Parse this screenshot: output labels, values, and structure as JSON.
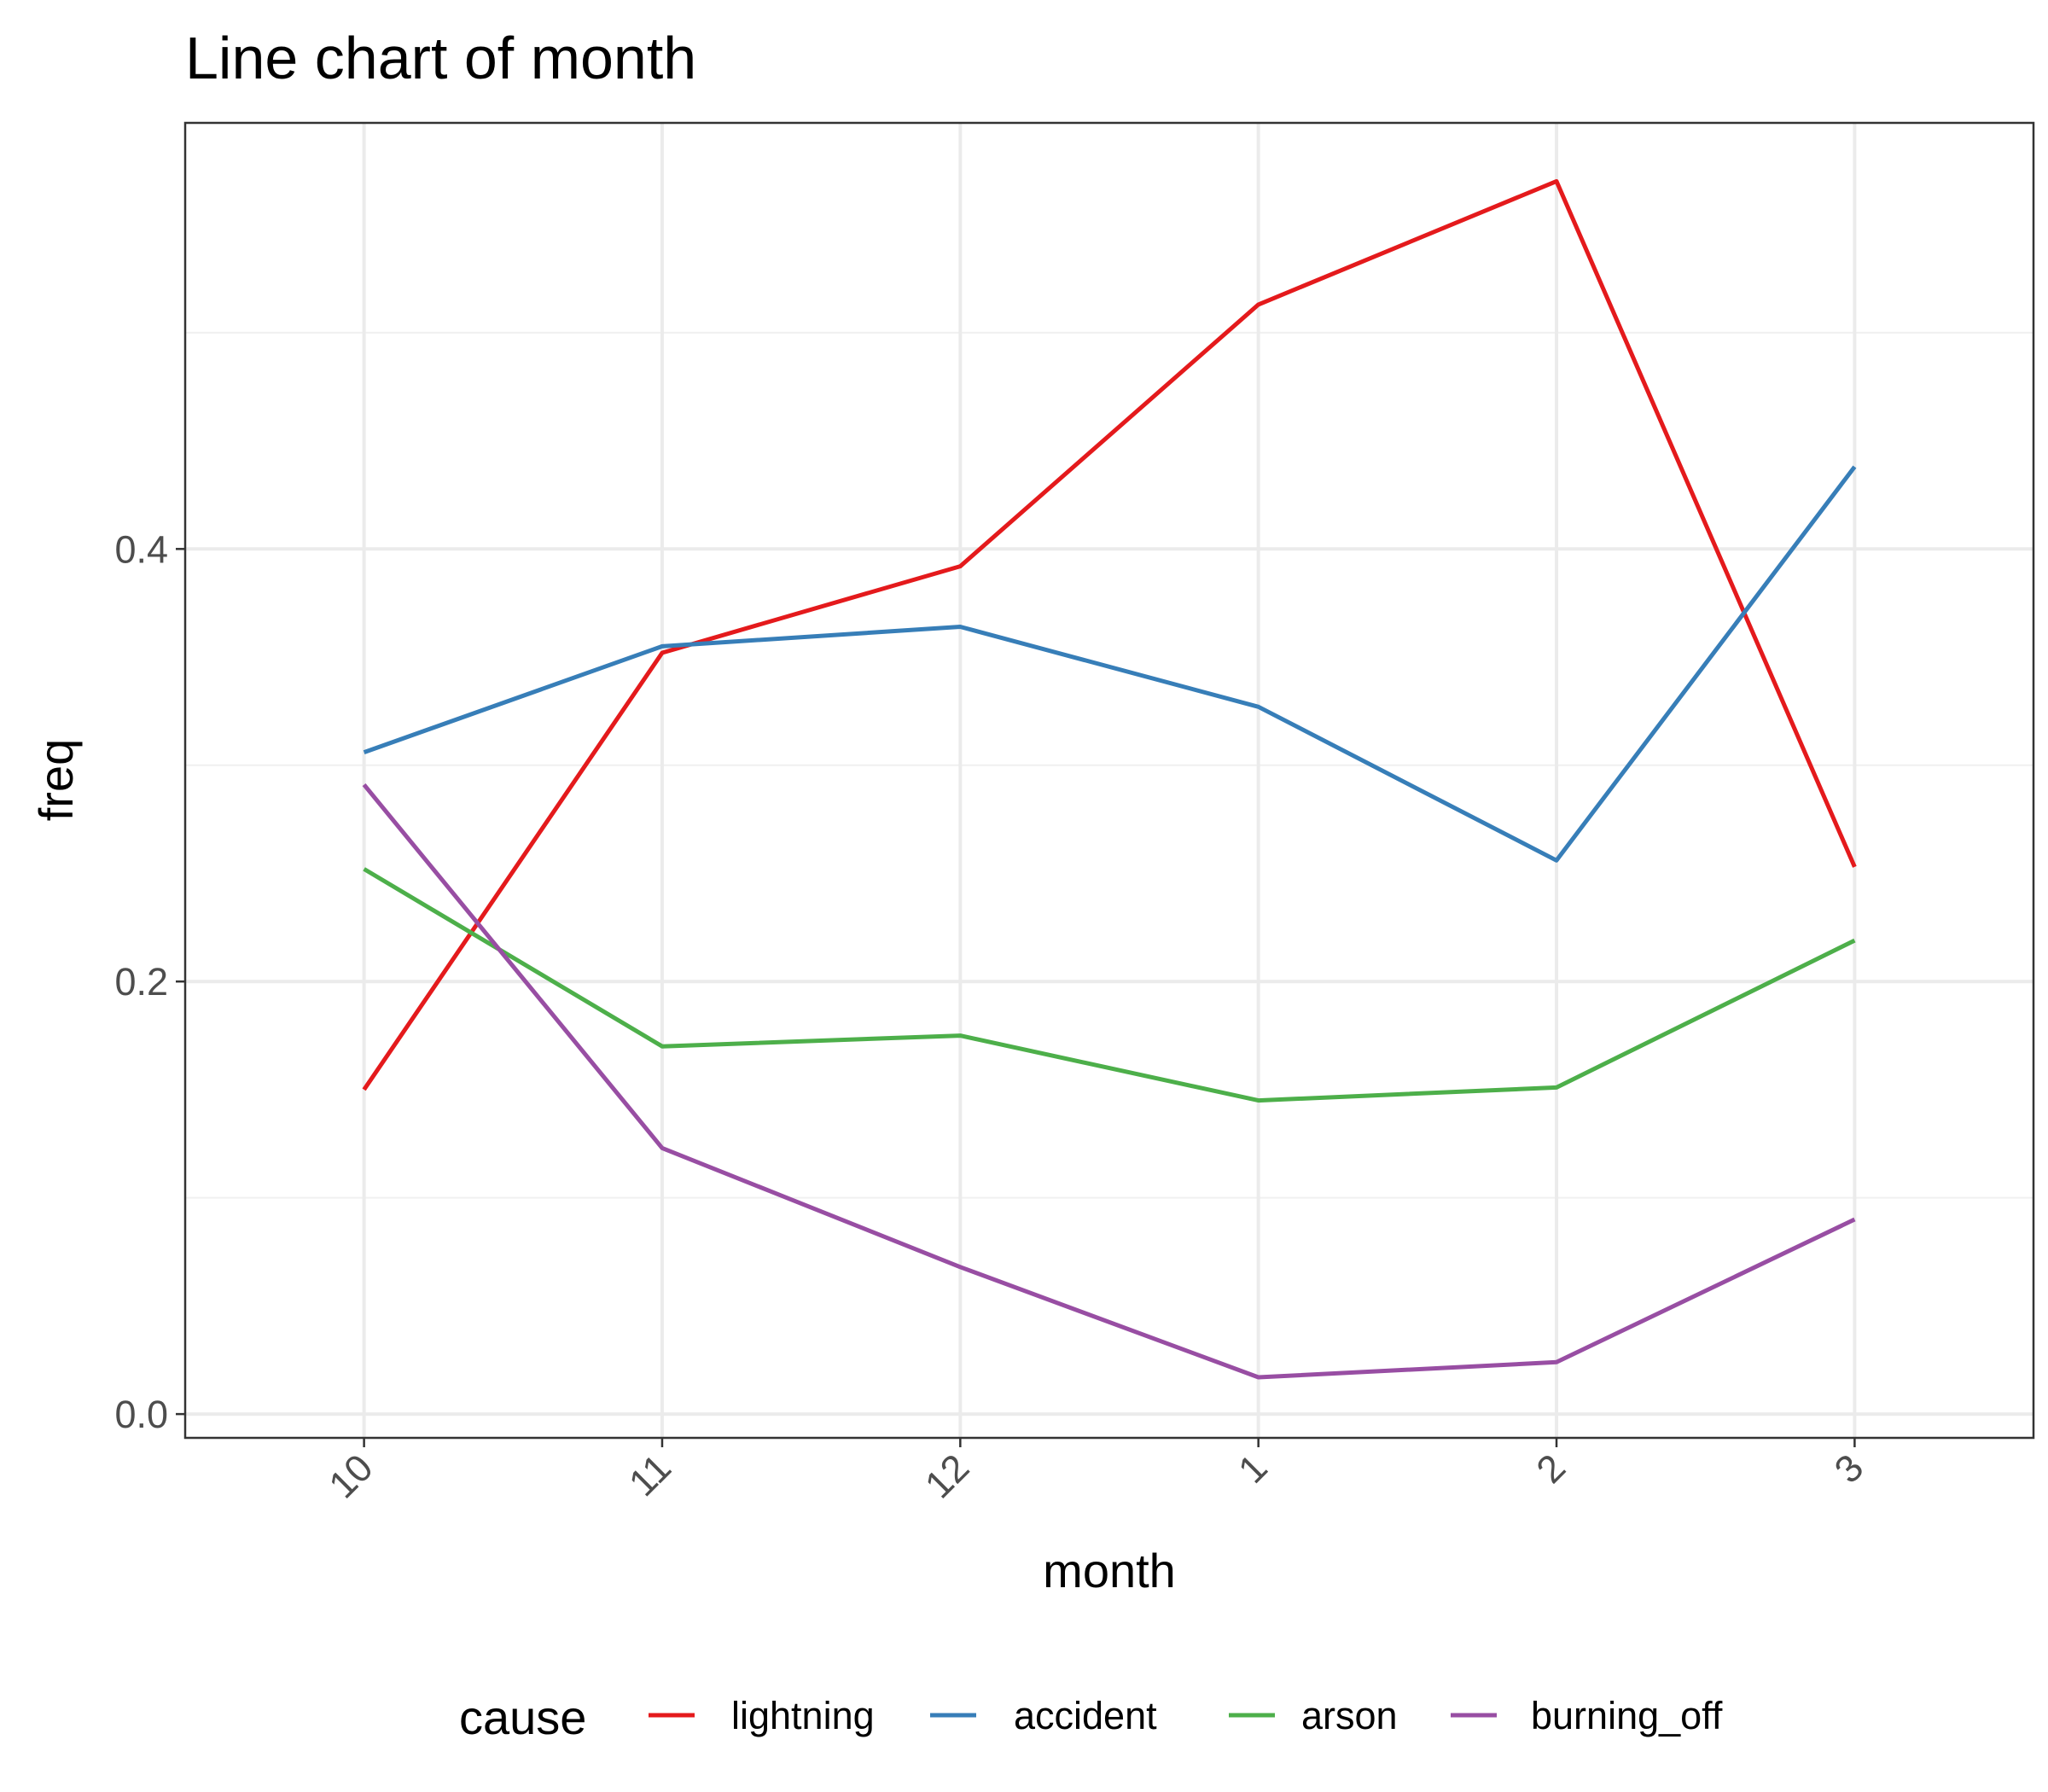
{
  "chart_data": {
    "type": "line",
    "title": "Line chart of month",
    "xlabel": "month",
    "ylabel": "freq",
    "categories": [
      "10",
      "11",
      "12",
      "1",
      "2",
      "3"
    ],
    "ylim": [
      -0.011,
      0.597
    ],
    "yticks": [
      0.0,
      0.2,
      0.4
    ],
    "ytick_labels": [
      "0.0",
      "0.2",
      "0.4"
    ],
    "grid": true,
    "legend": {
      "title": "cause",
      "position": "bottom"
    },
    "series": [
      {
        "name": "lightning",
        "color": "#e41a1c",
        "values": [
          0.15,
          0.352,
          0.392,
          0.513,
          0.57,
          0.253
        ]
      },
      {
        "name": "accident",
        "color": "#377eb8",
        "values": [
          0.306,
          0.355,
          0.364,
          0.327,
          0.256,
          0.438
        ]
      },
      {
        "name": "arson",
        "color": "#4daf4a",
        "values": [
          0.252,
          0.17,
          0.175,
          0.145,
          0.151,
          0.219
        ]
      },
      {
        "name": "burning_off",
        "color": "#984ea3",
        "values": [
          0.291,
          0.123,
          0.068,
          0.017,
          0.024,
          0.09
        ]
      }
    ]
  }
}
